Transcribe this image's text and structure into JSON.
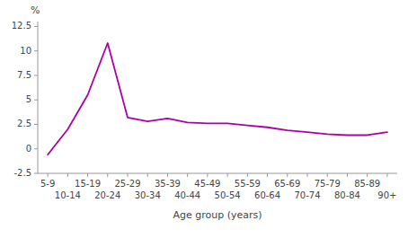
{
  "chart_data": {
    "type": "line",
    "categories": [
      "5-9",
      "10-14",
      "15-19",
      "20-24",
      "25-29",
      "30-34",
      "35-39",
      "40-44",
      "45-49",
      "50-54",
      "55-59",
      "60-64",
      "65-69",
      "70-74",
      "75-79",
      "80-84",
      "85-89",
      "90+"
    ],
    "values": [
      -0.6,
      2.0,
      5.5,
      10.8,
      3.2,
      2.8,
      3.1,
      2.7,
      2.6,
      2.6,
      2.4,
      2.2,
      1.9,
      1.7,
      1.5,
      1.4,
      1.4,
      1.7
    ],
    "color": "#aa00aa",
    "xlabel": "Age group (years)",
    "ylabel": "%",
    "ylim": [
      -2.5,
      13.0
    ],
    "yticks": [
      -2.5,
      0,
      2.5,
      5,
      7.5,
      10,
      12.5
    ],
    "grid": false
  }
}
